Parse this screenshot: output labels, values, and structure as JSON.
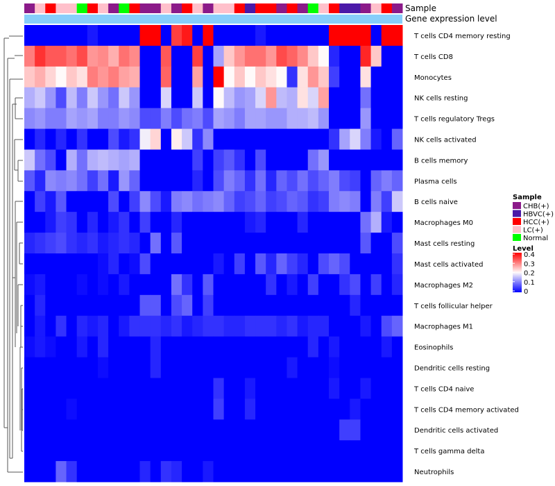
{
  "chart_data": {
    "type": "heatmap",
    "title": "",
    "annotation_track_labels": [
      "Sample",
      "Gene expression level"
    ],
    "n_samples": 36,
    "sample_groups": [
      "CHB(+)",
      "LC(+)",
      "HCC(+)",
      "LC(+)",
      "LC(+)",
      "Normal",
      "HCC(+)",
      "LC(+)",
      "CHB(+)",
      "Normal",
      "HCC(+)",
      "CHB(+)",
      "CHB(+)",
      "LC(+)",
      "CHB(+)",
      "HCC(+)",
      "LC(+)",
      "CHB(+)",
      "LC(+)",
      "LC(+)",
      "HCC(+)",
      "HBVC(+)",
      "HCC(+)",
      "HCC(+)",
      "CHB(+)",
      "HCC(+)",
      "CHB(+)",
      "Normal",
      "LC(+)",
      "HCC(+)",
      "HBVC(+)",
      "HBVC(+)",
      "CHB(+)",
      "LC(+)",
      "HCC(+)",
      "CHB(+)"
    ],
    "rows": [
      "T cells CD4 memory resting",
      "T cells CD8",
      "Monocytes",
      "NK cells resting",
      "T cells regulatory  Tregs",
      "NK cells activated",
      "B cells memory",
      "Plasma cells",
      "B cells naive",
      "Macrophages M0",
      "Mast cells resting",
      "Mast cells activated",
      "Macrophages M2",
      "T cells follicular helper",
      "Macrophages M1",
      "Eosinophils",
      "Dendritic cells resting",
      "T cells CD4 naive",
      "T cells CD4 memory activated",
      "Dendritic cells activated",
      "T cells gamma delta",
      "Neutrophils"
    ],
    "values": [
      [
        0,
        0,
        0,
        0,
        0,
        0,
        0.02,
        0,
        0,
        0,
        0,
        0.4,
        0.4,
        0,
        0.35,
        0.38,
        0,
        0.4,
        0,
        0,
        0,
        0,
        0.02,
        0,
        0,
        0,
        0,
        0,
        0,
        0.4,
        0.4,
        0.4,
        0.4,
        0,
        0.4,
        0.4
      ],
      [
        0.3,
        0.36,
        0.33,
        0.33,
        0.31,
        0.34,
        0.28,
        0.29,
        0.26,
        0.31,
        0.29,
        0,
        0,
        0.33,
        0,
        0,
        0.35,
        0,
        0.13,
        0.24,
        0.28,
        0.31,
        0.31,
        0.28,
        0.34,
        0.32,
        0.29,
        0.24,
        0.2,
        0.03,
        0,
        0,
        0.37,
        0.24,
        0,
        0
      ],
      [
        0.24,
        0.26,
        0.23,
        0.2,
        0.24,
        0.22,
        0.3,
        0.28,
        0.3,
        0.27,
        0.26,
        0,
        0,
        0.32,
        0,
        0,
        0.27,
        0,
        0.4,
        0.2,
        0.24,
        0.2,
        0.24,
        0.22,
        0.2,
        0.04,
        0.22,
        0.28,
        0.24,
        0.05,
        0,
        0,
        0.22,
        0,
        0,
        0
      ],
      [
        0.14,
        0.16,
        0.12,
        0.06,
        0.15,
        0.1,
        0.16,
        0.12,
        0.09,
        0.16,
        0.12,
        0,
        0,
        0.17,
        0,
        0,
        0.16,
        0,
        0.2,
        0.15,
        0.12,
        0.13,
        0.17,
        0.28,
        0.15,
        0.14,
        0.22,
        0.17,
        0.27,
        0,
        0,
        0,
        0.09,
        0,
        0,
        0
      ],
      [
        0.11,
        0.12,
        0.1,
        0.1,
        0.13,
        0.12,
        0.13,
        0.1,
        0.1,
        0.12,
        0.11,
        0.06,
        0.06,
        0.1,
        0.06,
        0.09,
        0.1,
        0.06,
        0.13,
        0.12,
        0.1,
        0.13,
        0.13,
        0.12,
        0.12,
        0.14,
        0.14,
        0.15,
        0.12,
        0,
        0,
        0,
        0.12,
        0,
        0,
        0
      ],
      [
        0,
        0.03,
        0,
        0.03,
        0,
        0.04,
        0,
        0,
        0.06,
        0.02,
        0.04,
        0.19,
        0.23,
        0,
        0.21,
        0.16,
        0.04,
        0.11,
        0,
        0,
        0,
        0,
        0,
        0,
        0,
        0,
        0,
        0,
        0,
        0.04,
        0.13,
        0.17,
        0.1,
        0.02,
        0,
        0.08
      ],
      [
        0.16,
        0.09,
        0.06,
        0,
        0.14,
        0.09,
        0.14,
        0.15,
        0.14,
        0.13,
        0.14,
        0,
        0,
        0,
        0,
        0,
        0.05,
        0,
        0.05,
        0.07,
        0.04,
        0,
        0.06,
        0,
        0,
        0,
        0,
        0.09,
        0.12,
        0,
        0,
        0,
        0,
        0,
        0,
        0
      ],
      [
        0.07,
        0.03,
        0.11,
        0.1,
        0.11,
        0.09,
        0.05,
        0.09,
        0.02,
        0.12,
        0.08,
        0,
        0,
        0,
        0,
        0,
        0.03,
        0,
        0.06,
        0.1,
        0.08,
        0.04,
        0.09,
        0.03,
        0.08,
        0.06,
        0.09,
        0.06,
        0.08,
        0.1,
        0.06,
        0.05,
        0,
        0.08,
        0.1,
        0.08
      ],
      [
        0,
        0.05,
        0.02,
        0.07,
        0,
        0,
        0,
        0,
        0.06,
        0,
        0.05,
        0.11,
        0.06,
        0.02,
        0.1,
        0.11,
        0.09,
        0.1,
        0.11,
        0.08,
        0.05,
        0.06,
        0.08,
        0.05,
        0.06,
        0.08,
        0.07,
        0.04,
        0.05,
        0.1,
        0.11,
        0.1,
        0,
        0.1,
        0.05,
        0.16
      ],
      [
        0,
        0,
        0.02,
        0.05,
        0.04,
        0,
        0.03,
        0,
        0.02,
        0.04,
        0,
        0.05,
        0,
        0,
        0.03,
        0,
        0,
        0,
        0,
        0,
        0,
        0.02,
        0.03,
        0,
        0,
        0,
        0.03,
        0,
        0,
        0,
        0,
        0,
        0.09,
        0.14,
        0.02,
        0
      ],
      [
        0.03,
        0.04,
        0.05,
        0.06,
        0.04,
        0.03,
        0.04,
        0.02,
        0.03,
        0.04,
        0.03,
        0,
        0.09,
        0,
        0.07,
        0,
        0,
        0,
        0,
        0,
        0,
        0,
        0,
        0,
        0,
        0,
        0,
        0,
        0,
        0,
        0,
        0,
        0.07,
        0,
        0,
        0.06
      ],
      [
        0,
        0,
        0,
        0,
        0,
        0,
        0,
        0.01,
        0.03,
        0,
        0.01,
        0.06,
        0,
        0,
        0,
        0,
        0,
        0,
        0.02,
        0,
        0.05,
        0,
        0.07,
        0.03,
        0.08,
        0.05,
        0.03,
        0,
        0.06,
        0.08,
        0.06,
        0,
        0,
        0,
        0,
        0.04
      ],
      [
        0.01,
        0.02,
        0,
        0,
        0,
        0.01,
        0,
        0.01,
        0,
        0.02,
        0,
        0,
        0,
        0,
        0.09,
        0.04,
        0,
        0.07,
        0,
        0,
        0,
        0,
        0,
        0.04,
        0,
        0.02,
        0,
        0.05,
        0,
        0,
        0.04,
        0.06,
        0,
        0.05,
        0,
        0.03
      ],
      [
        0,
        0.03,
        0,
        0,
        0,
        0,
        0,
        0,
        0,
        0,
        0,
        0.07,
        0.07,
        0,
        0.06,
        0.08,
        0,
        0.05,
        0,
        0,
        0,
        0,
        0,
        0,
        0,
        0,
        0,
        0,
        0,
        0,
        0,
        0.03,
        0,
        0,
        0,
        0
      ],
      [
        0,
        0.02,
        0,
        0.04,
        0,
        0.03,
        0.02,
        0.03,
        0,
        0.02,
        0.04,
        0.04,
        0.04,
        0.03,
        0.04,
        0.02,
        0.03,
        0.04,
        0.04,
        0.03,
        0.03,
        0.04,
        0.04,
        0.04,
        0.03,
        0.04,
        0.02,
        0.03,
        0.03,
        0,
        0,
        0,
        0.02,
        0,
        0.06,
        0.08
      ],
      [
        0.01,
        0.02,
        0.01,
        0,
        0,
        0.02,
        0,
        0.03,
        0,
        0,
        0,
        0,
        0.03,
        0,
        0,
        0,
        0,
        0,
        0,
        0,
        0,
        0,
        0,
        0,
        0,
        0,
        0,
        0.03,
        0,
        0.02,
        0,
        0,
        0,
        0,
        0.02,
        0
      ],
      [
        0,
        0,
        0,
        0,
        0,
        0,
        0,
        0.01,
        0,
        0,
        0,
        0,
        0.03,
        0,
        0,
        0,
        0,
        0,
        0,
        0,
        0,
        0,
        0,
        0,
        0,
        0.02,
        0,
        0,
        0,
        0.01,
        0,
        0,
        0,
        0,
        0,
        0
      ],
      [
        0,
        0,
        0,
        0,
        0,
        0,
        0,
        0,
        0,
        0,
        0,
        0,
        0,
        0,
        0,
        0,
        0,
        0,
        0.04,
        0,
        0,
        0.02,
        0,
        0,
        0,
        0,
        0,
        0,
        0,
        0.02,
        0,
        0,
        0.02,
        0,
        0,
        0
      ],
      [
        0,
        0,
        0,
        0,
        0.01,
        0,
        0,
        0,
        0,
        0,
        0,
        0,
        0,
        0,
        0,
        0,
        0,
        0,
        0.05,
        0,
        0,
        0.03,
        0,
        0,
        0,
        0,
        0,
        0,
        0,
        0,
        0,
        0.02,
        0,
        0,
        0,
        0
      ],
      [
        0,
        0,
        0,
        0,
        0,
        0,
        0,
        0,
        0,
        0,
        0,
        0,
        0,
        0,
        0,
        0,
        0,
        0,
        0,
        0,
        0,
        0,
        0,
        0,
        0,
        0,
        0,
        0,
        0,
        0,
        0.05,
        0.05,
        0,
        0,
        0,
        0
      ],
      [
        0,
        0,
        0,
        0,
        0,
        0,
        0,
        0,
        0,
        0,
        0,
        0,
        0,
        0,
        0,
        0,
        0,
        0,
        0,
        0,
        0,
        0,
        0,
        0,
        0,
        0,
        0,
        0,
        0,
        0,
        0,
        0,
        0,
        0,
        0,
        0
      ],
      [
        0,
        0,
        0,
        0.08,
        0.04,
        0,
        0,
        0,
        0,
        0,
        0,
        0.03,
        0,
        0.04,
        0.03,
        0,
        0,
        0.02,
        0,
        0,
        0,
        0,
        0,
        0,
        0,
        0,
        0,
        0,
        0,
        0,
        0,
        0,
        0,
        0,
        0,
        0
      ]
    ],
    "color_scale": {
      "title": "Level",
      "low_color": "#0000ff",
      "mid_color": "#fffafa",
      "high_color": "#ff0000",
      "min": 0,
      "max": 0.4,
      "ticks": [
        "0.4",
        "0.3",
        "0.2",
        "0.1",
        "0"
      ],
      "tick_values": [
        0.4,
        0.3,
        0.2,
        0.1,
        0
      ]
    },
    "sample_legend": {
      "title": "Sample",
      "items": [
        {
          "label": "CHB(+)",
          "color": "#8b1a89"
        },
        {
          "label": "HBVC(+)",
          "color": "#4b1aa8"
        },
        {
          "label": "HCC(+)",
          "color": "#ff0000"
        },
        {
          "label": "LC(+)",
          "color": "#ffc0cb"
        },
        {
          "label": "Normal",
          "color": "#00ff00"
        }
      ]
    },
    "gene_track_color": "#87cefa"
  }
}
